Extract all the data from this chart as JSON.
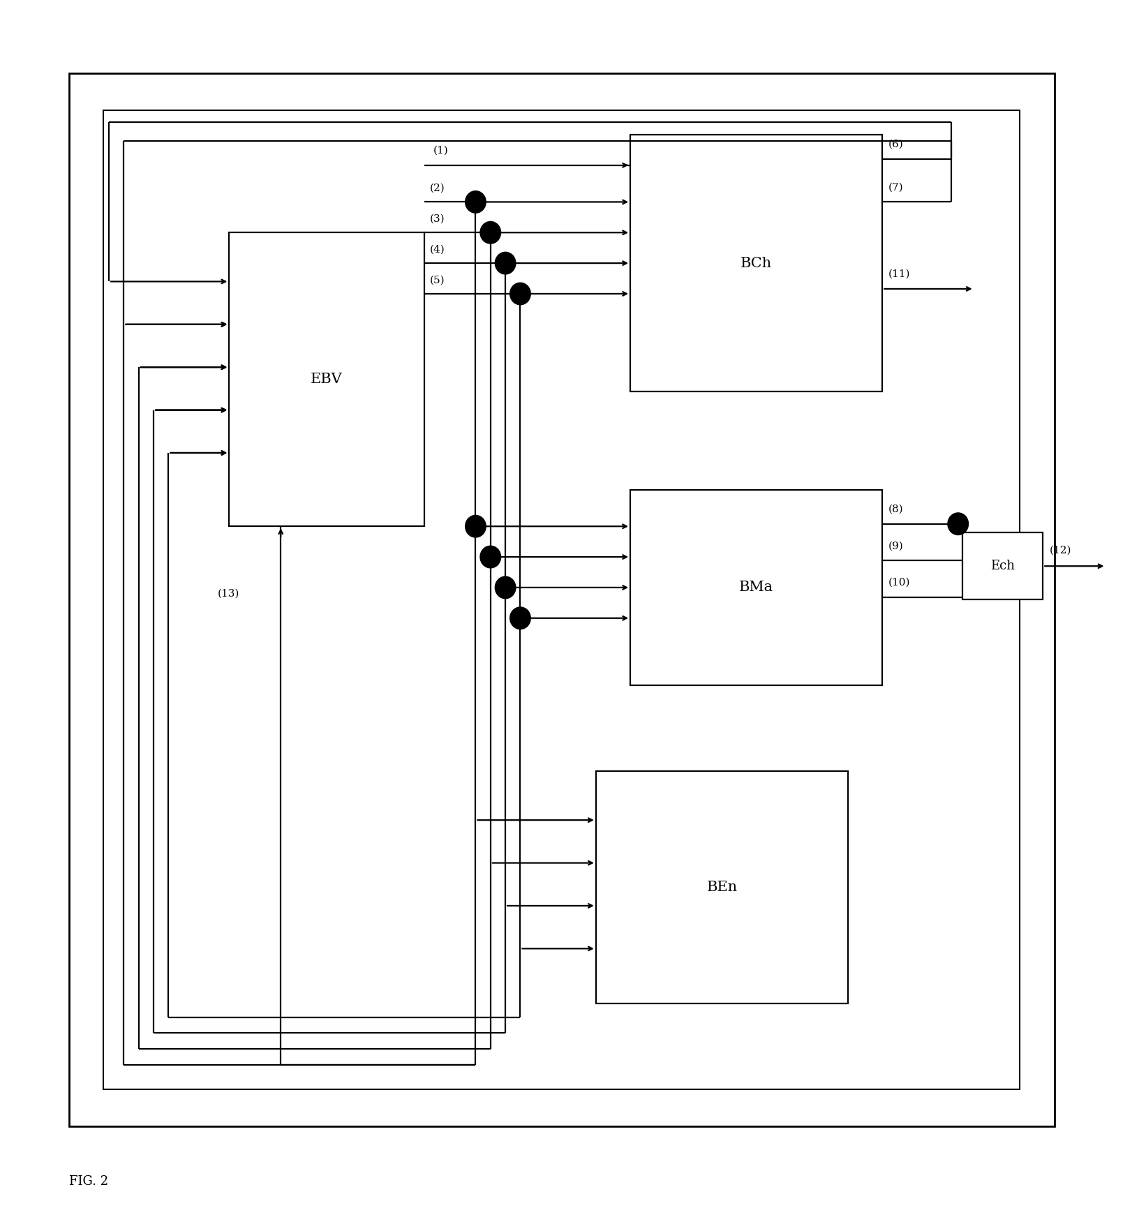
{
  "fig_width": 16.42,
  "fig_height": 17.54,
  "fig_label": "FIG. 2",
  "outer1": [
    0.06,
    0.08,
    0.86,
    0.86
  ],
  "outer2": [
    0.09,
    0.11,
    0.8,
    0.8
  ],
  "EBV": [
    0.2,
    0.57,
    0.17,
    0.24
  ],
  "BCh": [
    0.55,
    0.68,
    0.22,
    0.21
  ],
  "BMa": [
    0.55,
    0.44,
    0.22,
    0.16
  ],
  "BEn": [
    0.52,
    0.18,
    0.22,
    0.19
  ],
  "Ech": [
    0.84,
    0.51,
    0.07,
    0.055
  ],
  "lw": 1.6,
  "dot_r": 0.009,
  "fs_block": 15,
  "fs_num": 11,
  "fs_fig": 13
}
